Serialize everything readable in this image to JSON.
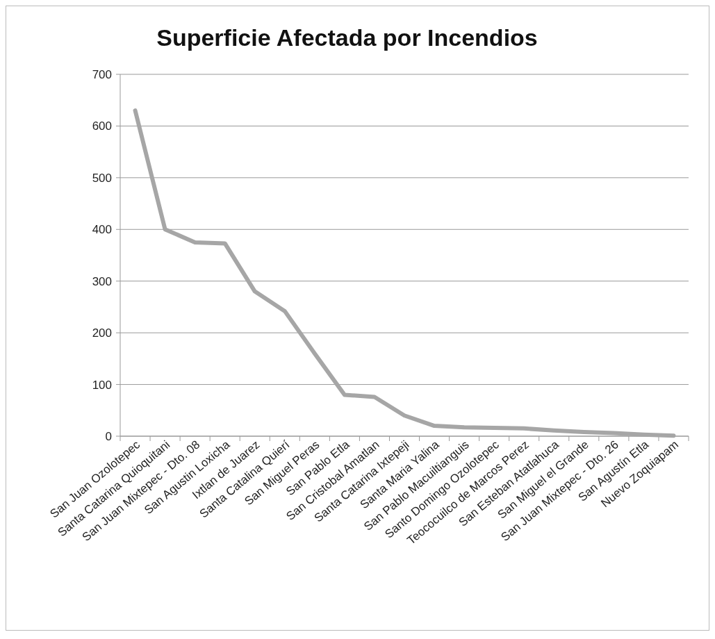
{
  "chart_data": {
    "type": "line",
    "title": "Superficie Afectada por Incendios",
    "categories": [
      "San Juan Ozolotepec",
      "Santa Catarina Quioquitani",
      "San Juan Mixtepec - Dto. 08",
      "San Agustin Loxicha",
      "Ixtlan de Juarez",
      "Santa Catalina Quierí",
      "San Miguel Peras",
      "San Pablo Etla",
      "San Cristobal Amatlan",
      "Santa Catarina Ixtepeji",
      "Santa Maria Yalina",
      "San Pablo Macuiltianguis",
      "Santo Domingo Ozolotepec",
      "Teococuilco de Marcos Perez",
      "San Esteban Atatlahuca",
      "San Miguel el Grande",
      "San Juan Mixtepec - Dto. 26",
      "San Agustín Etla",
      "Nuevo Zoquiapam"
    ],
    "series": [
      {
        "color": "#a6a6a6",
        "values": [
          630,
          400,
          375,
          373,
          280,
          242,
          160,
          80,
          76,
          40,
          20,
          17,
          16,
          15,
          11,
          8,
          6,
          3,
          1
        ]
      }
    ],
    "ylim": [
      0,
      700
    ],
    "yticks": [
      0,
      100,
      200,
      300,
      400,
      500,
      600,
      700
    ],
    "grid": "y",
    "marker": "none",
    "line_style": "solid"
  }
}
